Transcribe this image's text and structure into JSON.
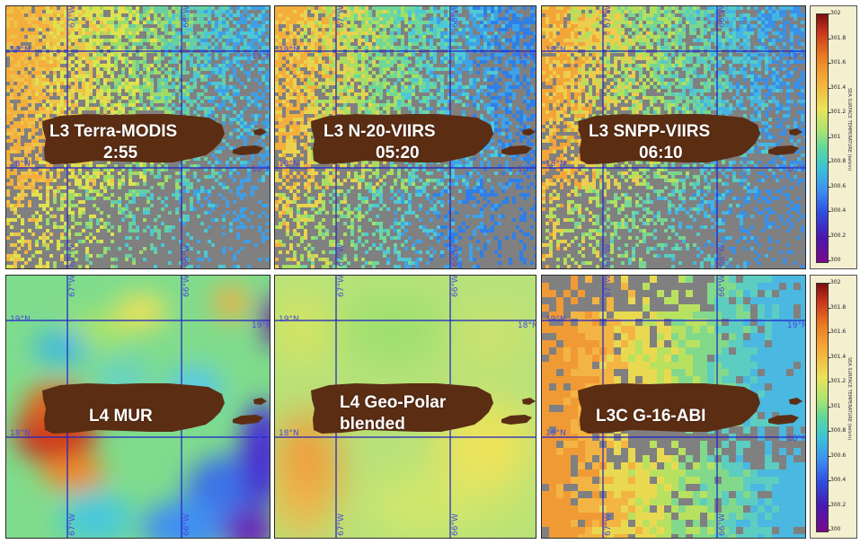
{
  "panels": [
    {
      "id": "terra",
      "label_line1": "L3 Terra-MODIS",
      "label_line2": "2:55",
      "lon_labels": [
        "67°W",
        "66°W"
      ],
      "lat_labels": [
        "19°N",
        "19°N",
        "18°N",
        "18°N"
      ],
      "style": "swath",
      "palette": [
        "#f4ae3c",
        "#efc24a",
        "#dfe24f",
        "#9edc67",
        "#69cfa0",
        "#4cc7d3",
        "#3f9fe6"
      ]
    },
    {
      "id": "n20",
      "label_line1": "L3 N-20-VIIRS",
      "label_line2": "05:20",
      "lon_labels": [
        "67°W",
        "66°W"
      ],
      "lat_labels": [
        "19°N",
        "19°N",
        "18°N",
        "18°N"
      ],
      "style": "swath",
      "palette": [
        "#f4ae3c",
        "#e9d34e",
        "#a7df62",
        "#6ed79a",
        "#4fc8d5",
        "#3ea2e8",
        "#2f7fe7"
      ]
    },
    {
      "id": "snpp",
      "label_line1": "L3 SNPP-VIIRS",
      "label_line2": "06:10",
      "lon_labels": [
        "67°W",
        "66°W"
      ],
      "lat_labels": [
        "19°N",
        "19°N",
        "18°N",
        "18°N"
      ],
      "style": "swath",
      "palette": [
        "#f3a538",
        "#eccd4d",
        "#b2e05e",
        "#79d690",
        "#56cbc6",
        "#45b4e2",
        "#3a8fe6"
      ]
    },
    {
      "id": "mur",
      "label_line1": "L4 MUR",
      "label_line2": "",
      "lon_labels": [
        "67°W",
        "66°W"
      ],
      "lat_labels": [
        "19°N",
        "19°N",
        "18°N",
        "18°N"
      ],
      "style": "smooth-mur"
    },
    {
      "id": "geopolar",
      "label_line1": "L4 Geo-Polar",
      "label_line2": "blended",
      "lon_labels": [
        "67°W",
        "66°W"
      ],
      "lat_labels": [
        "19°N",
        "18°N",
        "18°N"
      ],
      "style": "smooth-gp"
    },
    {
      "id": "abi",
      "label_line1": "L3C G-16-ABI",
      "label_line2": "",
      "lon_labels": [
        "67°W",
        "66°W"
      ],
      "lat_labels": [
        "19°N",
        "19°N",
        "18°N",
        "18°N"
      ],
      "style": "blocky",
      "palette": [
        "#f09a35",
        "#f3b443",
        "#e9d951",
        "#b9e160",
        "#82d98c",
        "#5ccdc0",
        "#4ab8e0"
      ]
    }
  ],
  "colorbar": {
    "title": "SEA SURFACE TEMPERATURE (kelvin)",
    "ticks": [
      "302",
      "301.8",
      "301.6",
      "301.4",
      "301.2",
      "301",
      "300.8",
      "300.6",
      "300.4",
      "300.2",
      "300"
    ],
    "range": [
      300,
      302
    ]
  },
  "colors": {
    "land": "#5b2e14",
    "nodata": "#808080",
    "grid": "#1c20c8"
  }
}
